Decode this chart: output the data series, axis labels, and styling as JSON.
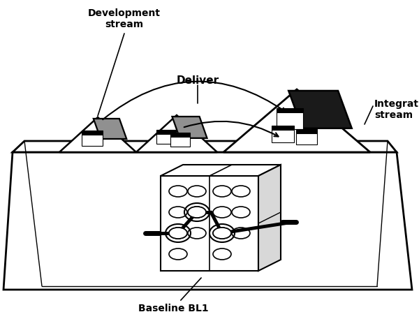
{
  "bg_color": "#ffffff",
  "line_color": "#000000",
  "gray_dark": "#1a1a1a",
  "gray_mid": "#707070",
  "gray_light": "#c0c0c0",
  "label_dev_stream": "Development\nstream",
  "label_deliver": "Deliver",
  "label_int_stream": "Integration\nstream",
  "label_baseline": "Baseline BL1",
  "fig_width": 6.0,
  "fig_height": 4.47,
  "dpi": 100
}
